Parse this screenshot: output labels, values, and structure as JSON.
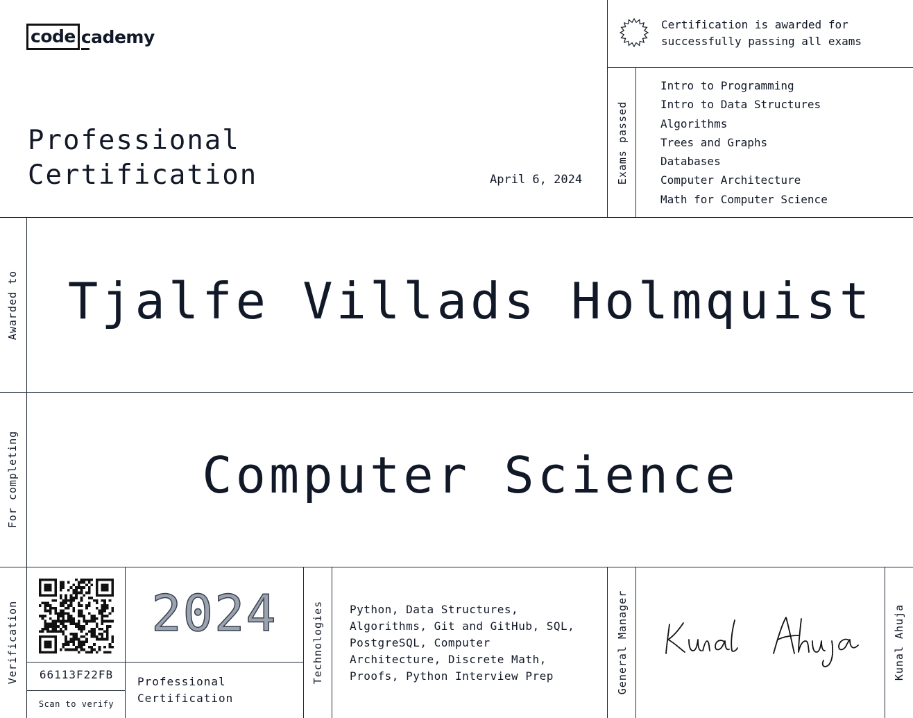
{
  "logo": {
    "boxed": "code",
    "rest": "cademy"
  },
  "certificate": {
    "title_line1": "Professional",
    "title_line2": "Certification",
    "date": "April 6, 2024"
  },
  "award_note": {
    "line1": "Certification is awarded for",
    "line2": "successfully passing all exams"
  },
  "exams": {
    "label": "Exams passed",
    "items": [
      "Intro to Programming",
      "Intro to Data Structures",
      "Algorithms",
      "Trees and Graphs",
      "Databases",
      "Computer Architecture",
      "Math for Computer Science"
    ]
  },
  "awarded": {
    "label": "Awarded to",
    "name": "Tjalfe Villads Holmquist"
  },
  "completing": {
    "label": "For completing",
    "course": "Computer Science"
  },
  "verification": {
    "label": "Verification",
    "year": "2024",
    "cert_id": "66113F22FB",
    "scan_text": "Scan to verify",
    "cert_type_line1": "Professional",
    "cert_type_line2": "Certification"
  },
  "technologies": {
    "label": "Technologies",
    "lines": [
      "Python, Data Structures,",
      "Algorithms, Git and GitHub, SQL,",
      "PostgreSQL, Computer",
      "Architecture, Discrete Math,",
      "Proofs, Python Interview Prep"
    ]
  },
  "signatory": {
    "role": "General Manager",
    "name": "Kunal Ahuja",
    "signature": "Kunal Ahuja"
  },
  "colors": {
    "ink": "#111827",
    "rule": "#1f2937",
    "year_fill": "#9ca3af"
  }
}
